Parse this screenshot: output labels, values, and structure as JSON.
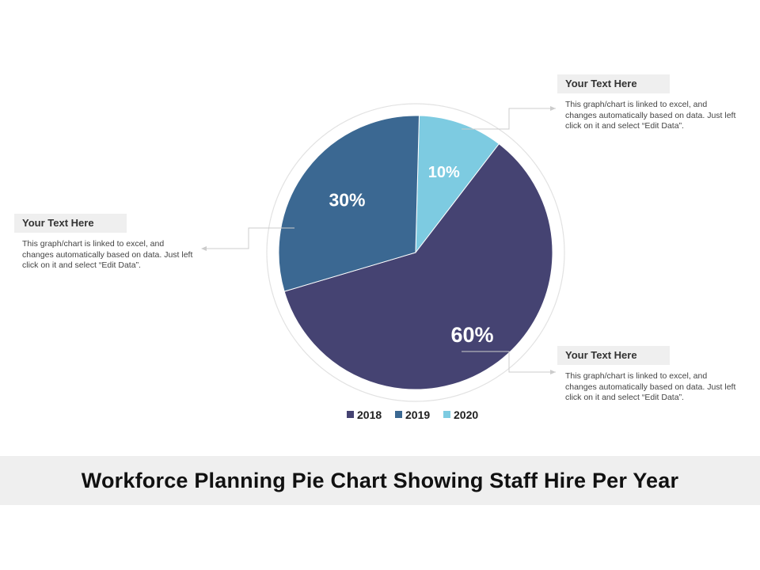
{
  "chart_data": {
    "type": "pie",
    "title": "Workforce Planning Pie Chart Showing Staff Hire Per Year",
    "slices": [
      {
        "label": "2018",
        "value": 60,
        "display": "60%",
        "color": "#454372"
      },
      {
        "label": "2019",
        "value": 30,
        "display": "30%",
        "color": "#3b6892"
      },
      {
        "label": "2020",
        "value": 10,
        "display": "10%",
        "color": "#7dcbe1"
      }
    ],
    "legend_placement": "bottom"
  },
  "callouts": [
    {
      "heading": "Your Text Here",
      "body": "This graph/chart is linked to excel, and changes automatically based on data. Just left click on it and select “Edit Data”."
    },
    {
      "heading": "Your Text Here",
      "body": "This graph/chart is linked to excel, and changes automatically based on data. Just left click on it and select “Edit Data”."
    },
    {
      "heading": "Your Text Here",
      "body": "This graph/chart is linked to excel, and changes automatically based on data. Just left click on it and select “Edit Data”."
    }
  ]
}
